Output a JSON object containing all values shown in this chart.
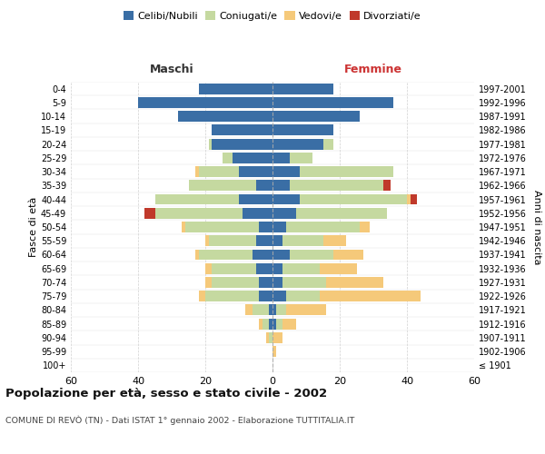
{
  "age_groups": [
    "100+",
    "95-99",
    "90-94",
    "85-89",
    "80-84",
    "75-79",
    "70-74",
    "65-69",
    "60-64",
    "55-59",
    "50-54",
    "45-49",
    "40-44",
    "35-39",
    "30-34",
    "25-29",
    "20-24",
    "15-19",
    "10-14",
    "5-9",
    "0-4"
  ],
  "birth_years": [
    "≤ 1901",
    "1902-1906",
    "1907-1911",
    "1912-1916",
    "1917-1921",
    "1922-1926",
    "1927-1931",
    "1932-1936",
    "1937-1941",
    "1942-1946",
    "1947-1951",
    "1952-1956",
    "1957-1961",
    "1962-1966",
    "1967-1971",
    "1972-1976",
    "1977-1981",
    "1982-1986",
    "1987-1991",
    "1992-1996",
    "1997-2001"
  ],
  "maschi": {
    "celibi": [
      0,
      0,
      0,
      1,
      1,
      4,
      4,
      5,
      6,
      5,
      4,
      9,
      10,
      5,
      10,
      12,
      18,
      18,
      28,
      40,
      22
    ],
    "coniugati": [
      0,
      0,
      1,
      2,
      5,
      16,
      14,
      13,
      16,
      14,
      22,
      26,
      25,
      20,
      12,
      3,
      1,
      0,
      0,
      0,
      0
    ],
    "vedovi": [
      0,
      0,
      1,
      1,
      2,
      2,
      2,
      2,
      1,
      1,
      1,
      0,
      0,
      0,
      1,
      0,
      0,
      0,
      0,
      0,
      0
    ],
    "divorziati": [
      0,
      0,
      0,
      0,
      0,
      0,
      0,
      0,
      0,
      0,
      0,
      3,
      0,
      0,
      0,
      0,
      0,
      0,
      0,
      0,
      0
    ]
  },
  "femmine": {
    "nubili": [
      0,
      0,
      0,
      1,
      1,
      4,
      3,
      3,
      5,
      3,
      4,
      7,
      8,
      5,
      8,
      5,
      15,
      18,
      26,
      36,
      18
    ],
    "coniugate": [
      0,
      0,
      0,
      2,
      3,
      10,
      13,
      11,
      13,
      12,
      22,
      27,
      32,
      28,
      28,
      7,
      3,
      0,
      0,
      0,
      0
    ],
    "vedove": [
      0,
      1,
      3,
      4,
      12,
      30,
      17,
      11,
      9,
      7,
      3,
      0,
      1,
      0,
      0,
      0,
      0,
      0,
      0,
      0,
      0
    ],
    "divorziate": [
      0,
      0,
      0,
      0,
      0,
      0,
      0,
      0,
      0,
      0,
      0,
      0,
      2,
      2,
      0,
      0,
      0,
      0,
      0,
      0,
      0
    ]
  },
  "colors": {
    "celibi_nubili": "#3a6ea5",
    "coniugati": "#c5d9a0",
    "vedovi": "#f5c97a",
    "divorziati": "#c0392b"
  },
  "xlim": 60,
  "title": "Popolazione per età, sesso e stato civile - 2002",
  "subtitle": "COMUNE DI REVÒ (TN) - Dati ISTAT 1° gennaio 2002 - Elaborazione TUTTITALIA.IT",
  "ylabel_left": "Fasce di età",
  "ylabel_right": "Anni di nascita",
  "maschi_label": "Maschi",
  "femmine_label": "Femmine",
  "legend_labels": [
    "Celibi/Nubili",
    "Coniugati/e",
    "Vedovi/e",
    "Divorziati/e"
  ],
  "bg_color": "#ffffff",
  "grid_color": "#cccccc"
}
